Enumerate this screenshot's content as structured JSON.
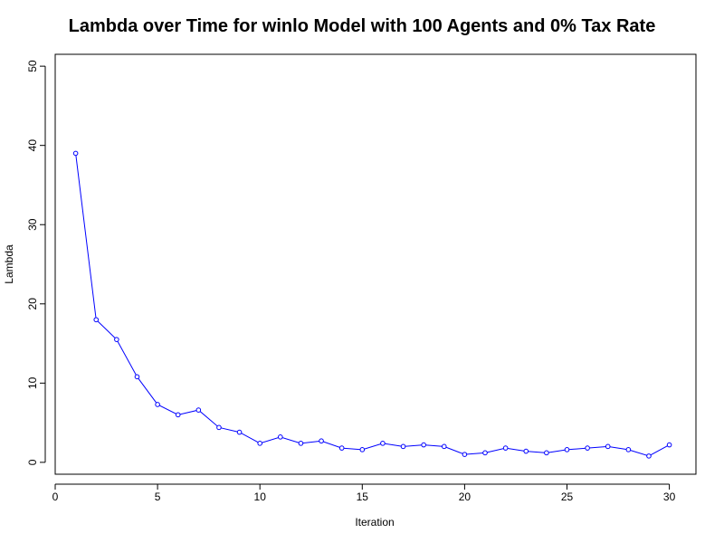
{
  "chart_data": {
    "type": "line",
    "title": "Lambda over Time for winlo Model with 100 Agents and 0% Tax Rate",
    "xlabel": "Iteration",
    "ylabel": "Lambda",
    "xlim": [
      0,
      31.3
    ],
    "ylim": [
      -1.5,
      51.5
    ],
    "x_ticks": [
      0,
      5,
      10,
      15,
      20,
      25,
      30
    ],
    "y_ticks": [
      0,
      10,
      20,
      30,
      40,
      50
    ],
    "grid": false,
    "legend": "none",
    "series_color": "#0000ff",
    "marker": "open-circle",
    "series": [
      {
        "x": [
          1,
          2,
          3,
          4,
          5,
          6,
          7,
          8,
          9,
          10,
          11,
          12,
          13,
          14,
          15,
          16,
          17,
          18,
          19,
          20,
          21,
          22,
          23,
          24,
          25,
          26,
          27,
          28,
          29,
          30
        ],
        "values": [
          39.0,
          18.0,
          15.5,
          10.8,
          7.3,
          6.0,
          6.6,
          4.4,
          3.8,
          2.4,
          3.2,
          2.4,
          2.7,
          1.8,
          1.6,
          2.4,
          2.0,
          2.2,
          2.0,
          1.0,
          1.2,
          1.8,
          1.4,
          1.2,
          1.6,
          1.8,
          2.0,
          1.6,
          0.8,
          2.2
        ]
      }
    ]
  }
}
